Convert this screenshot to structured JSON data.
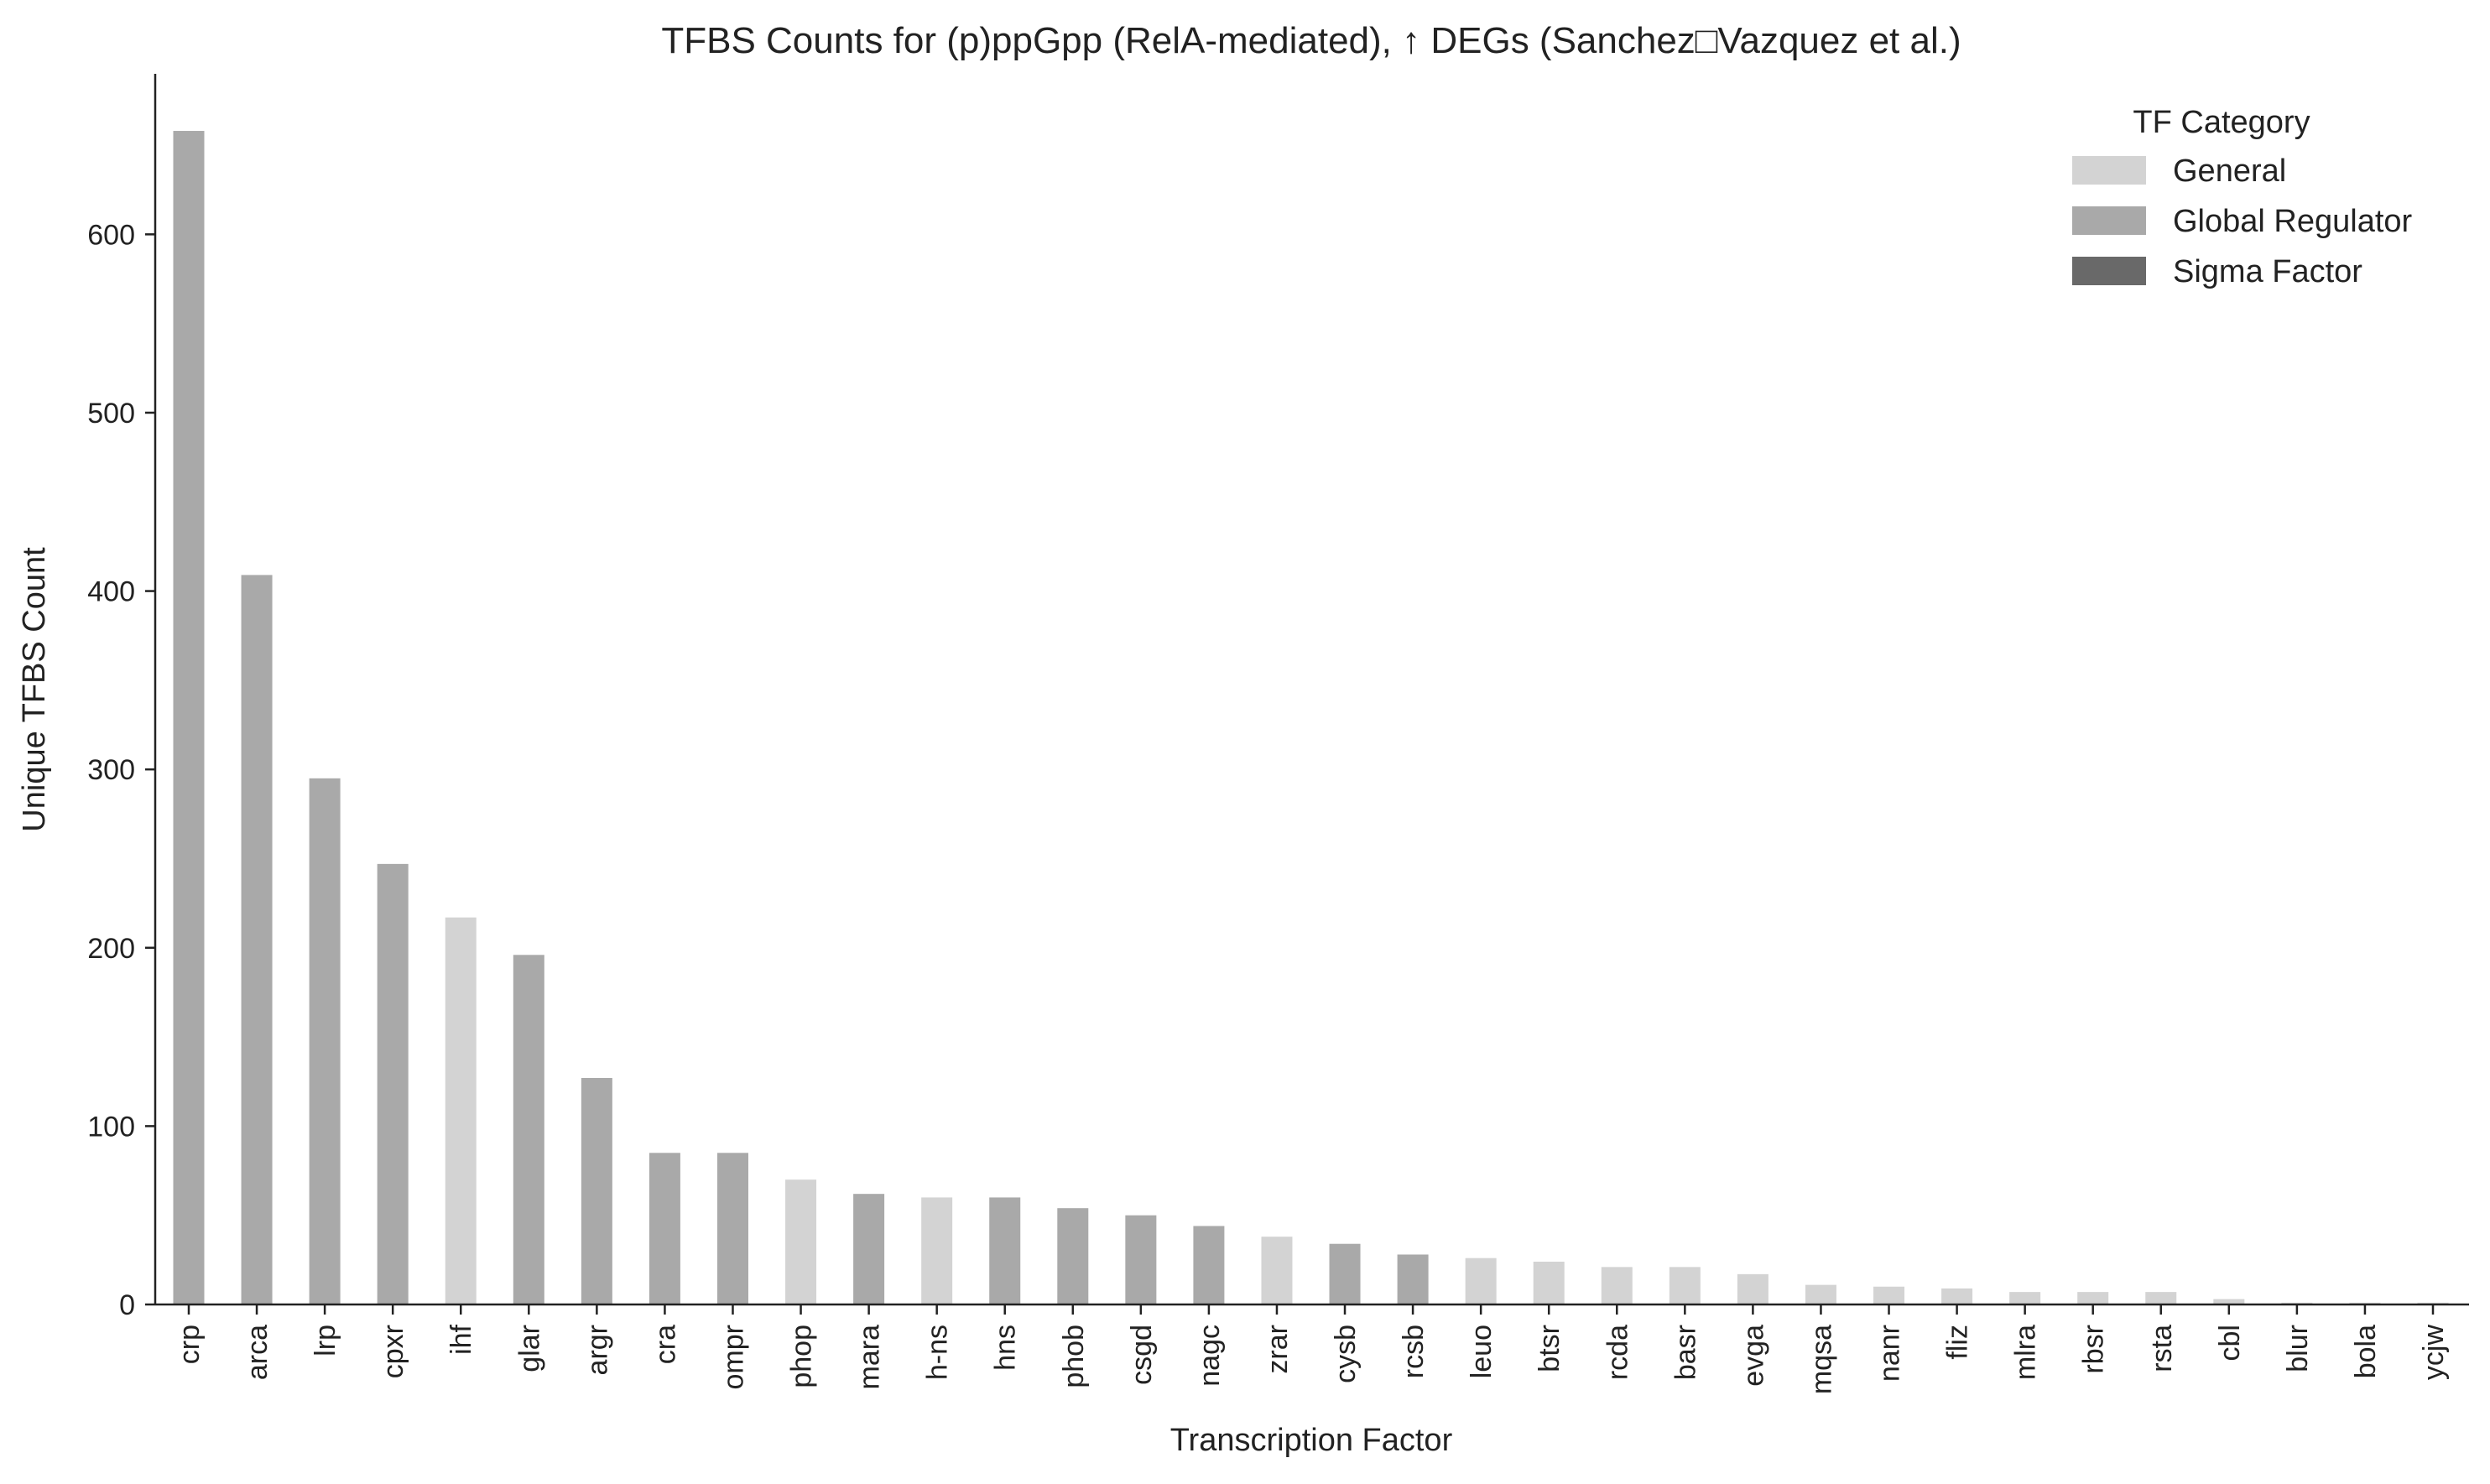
{
  "chart_data": {
    "type": "bar",
    "title": "TFBS Counts for (p)ppGpp (RelA-mediated), ↑ DEGs (Sanchez□Vazquez et al.)",
    "xlabel": "Transcription Factor",
    "ylabel": "Unique TFBS Count",
    "ylim": [
      0,
      690
    ],
    "yticks": [
      0,
      100,
      200,
      300,
      400,
      500,
      600
    ],
    "grid": false,
    "legend": {
      "title": "TF Category",
      "placement": "top-right",
      "entries": [
        {
          "name": "General",
          "color": "#d3d3d3"
        },
        {
          "name": "Global Regulator",
          "color": "#a9a9a9"
        },
        {
          "name": "Sigma Factor",
          "color": "#696969"
        }
      ]
    },
    "categories": [
      "crp",
      "arca",
      "lrp",
      "cpxr",
      "ihf",
      "glar",
      "argr",
      "cra",
      "ompr",
      "phop",
      "mara",
      "h-ns",
      "hns",
      "phob",
      "csgd",
      "nagc",
      "zrar",
      "cysb",
      "rcsb",
      "leuo",
      "btsr",
      "rcda",
      "basr",
      "evga",
      "mqsa",
      "nanr",
      "fliz",
      "mlra",
      "rbsr",
      "rsta",
      "cbl",
      "blur",
      "bola",
      "ycjw"
    ],
    "values": [
      658,
      409,
      295,
      247,
      217,
      196,
      127,
      85,
      85,
      70,
      62,
      60,
      60,
      54,
      50,
      44,
      38,
      34,
      28,
      26,
      24,
      21,
      21,
      17,
      11,
      10,
      9,
      7,
      7,
      7,
      3,
      1,
      1,
      1
    ],
    "bar_categories": [
      "Global Regulator",
      "Global Regulator",
      "Global Regulator",
      "Global Regulator",
      "General",
      "Global Regulator",
      "Global Regulator",
      "Global Regulator",
      "Global Regulator",
      "General",
      "Global Regulator",
      "General",
      "Global Regulator",
      "Global Regulator",
      "Global Regulator",
      "Global Regulator",
      "General",
      "Global Regulator",
      "Global Regulator",
      "General",
      "General",
      "General",
      "General",
      "General",
      "General",
      "General",
      "General",
      "General",
      "General",
      "General",
      "General",
      "General",
      "General",
      "General"
    ]
  }
}
